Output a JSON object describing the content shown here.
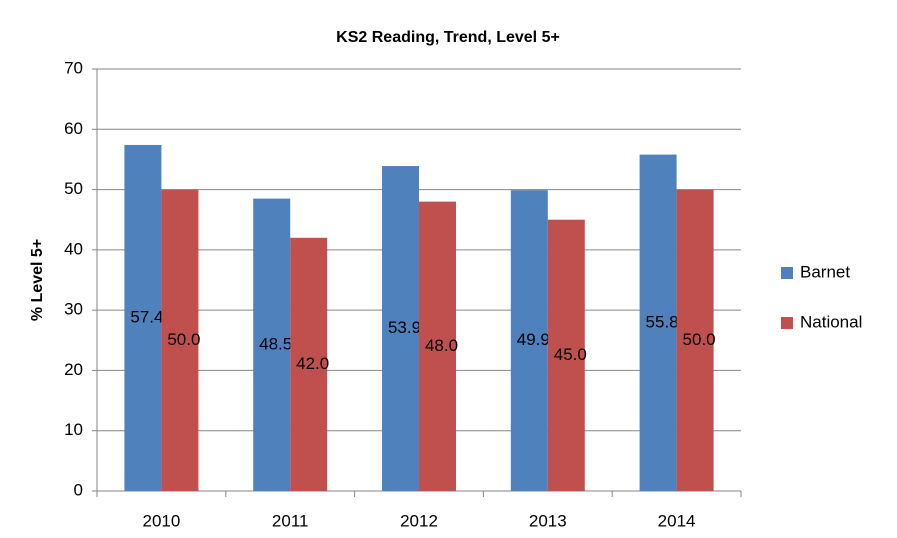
{
  "chart_data": {
    "type": "bar",
    "title": "KS2 Reading, Trend, Level 5+",
    "y_label": "% Level 5+",
    "categories": [
      "2010",
      "2011",
      "2012",
      "2013",
      "2014"
    ],
    "series": [
      {
        "name": "Barnet",
        "color": "#4f81bd",
        "values": [
          57.4,
          48.5,
          53.9,
          49.9,
          55.8
        ]
      },
      {
        "name": "National",
        "color": "#c0504d",
        "values": [
          50,
          42,
          48,
          45,
          50
        ],
        "value_labels": [
          "50.0",
          "42.0",
          "48.0",
          "45.0",
          "50.0"
        ]
      }
    ],
    "ylim": [
      0,
      70
    ],
    "yticks": [
      0,
      10,
      20,
      30,
      40,
      50,
      60,
      70
    ],
    "grid": true,
    "legend": "right"
  }
}
